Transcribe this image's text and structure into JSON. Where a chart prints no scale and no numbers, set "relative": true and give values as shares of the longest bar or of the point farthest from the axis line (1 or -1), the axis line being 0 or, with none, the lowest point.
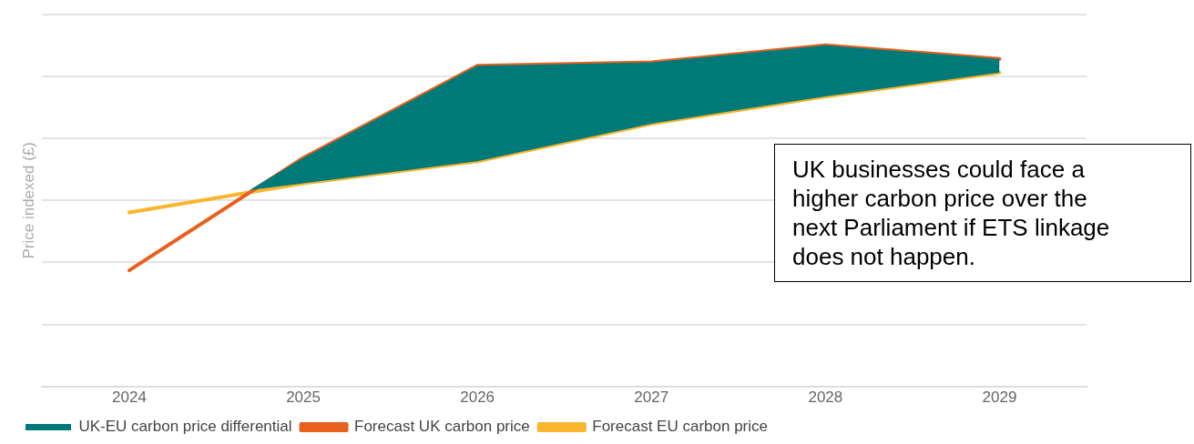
{
  "chart_data": {
    "type": "line",
    "relative": true,
    "ylabel": "Price indexed (£)",
    "xlim": [
      2023.5,
      2029.5
    ],
    "xticks": [
      2024,
      2025,
      2026,
      2027,
      2028,
      2029
    ],
    "grid": "y",
    "legend": "bottom",
    "marker": "none",
    "line_style": "solid",
    "series": [
      {
        "name": "UK-EU carbon price differential",
        "type": "area",
        "color": "#007a78",
        "x": [
          2024.69,
          2025,
          2026,
          2027,
          2028,
          2029
        ],
        "values": [
          0.575,
          0.67,
          0.94,
          0.95,
          1,
          0.96
        ]
      },
      {
        "name": "Forecast UK carbon price",
        "color": "#e8601c",
        "x": [
          2024,
          2025,
          2026,
          2027,
          2028,
          2029
        ],
        "values": [
          0.34,
          0.67,
          0.94,
          0.95,
          1,
          0.96
        ]
      },
      {
        "name": "Forecast EU carbon price",
        "color": "#f9b52c",
        "x": [
          2024,
          2025,
          2026,
          2027,
          2028,
          2029
        ],
        "values": [
          0.51,
          0.595,
          0.66,
          0.77,
          0.85,
          0.92
        ]
      }
    ],
    "annotations": [
      "UK businesses could face a higher carbon price over the next Parliament if ETS linkage does not happen."
    ]
  }
}
